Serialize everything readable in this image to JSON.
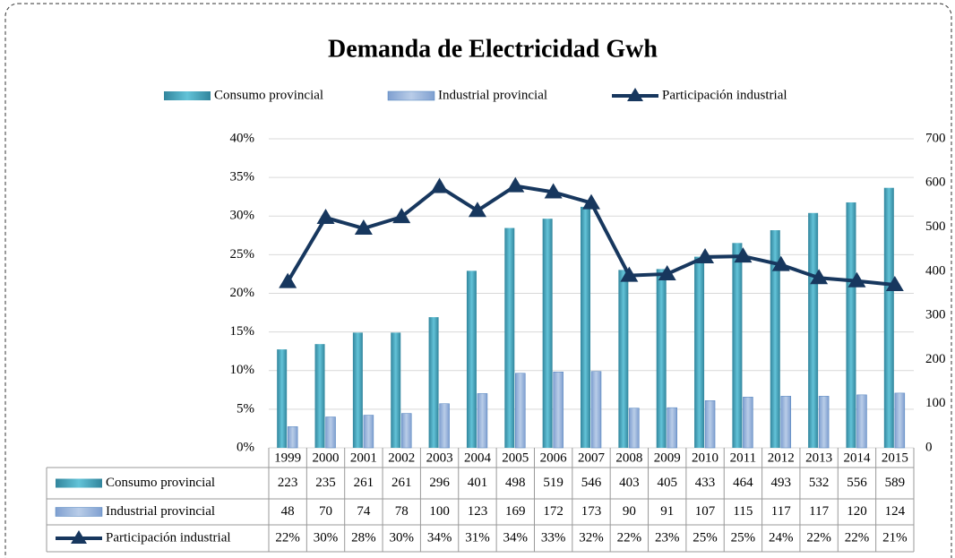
{
  "chart_data": {
    "type": "bar_line",
    "title": "Demanda de Electricidad Gwh",
    "categories": [
      "1999",
      "2000",
      "2001",
      "2002",
      "2003",
      "2004",
      "2005",
      "2006",
      "2007",
      "2008",
      "2009",
      "2010",
      "2011",
      "2012",
      "2013",
      "2014",
      "2015"
    ],
    "series": [
      {
        "name": "Consumo provincial",
        "type": "bar",
        "axis": "y2",
        "color": "#4bacc6",
        "values": [
          223,
          235,
          261,
          261,
          296,
          401,
          498,
          519,
          546,
          403,
          405,
          433,
          464,
          493,
          532,
          556,
          589
        ]
      },
      {
        "name": "Industrial provincial",
        "type": "bar",
        "axis": "y2",
        "color": "#95b3d7",
        "values": [
          48,
          70,
          74,
          78,
          100,
          123,
          169,
          172,
          173,
          90,
          91,
          107,
          115,
          117,
          117,
          120,
          124
        ]
      },
      {
        "name": "Participación industrial",
        "type": "line",
        "axis": "y",
        "color": "#17375e",
        "values": [
          21.5,
          29.8,
          28.4,
          29.9,
          33.8,
          30.7,
          33.9,
          33.1,
          31.7,
          22.3,
          22.5,
          24.7,
          24.8,
          23.7,
          22.0,
          21.6,
          21.1
        ],
        "value_labels": [
          "22%",
          "30%",
          "28%",
          "30%",
          "34%",
          "31%",
          "34%",
          "33%",
          "32%",
          "22%",
          "23%",
          "25%",
          "25%",
          "24%",
          "22%",
          "22%",
          "21%"
        ]
      }
    ],
    "ylim": [
      0,
      40
    ],
    "yticks": [
      {
        "value": 0,
        "label": "0%"
      },
      {
        "value": 5,
        "label": "5%"
      },
      {
        "value": 10,
        "label": "10%"
      },
      {
        "value": 15,
        "label": "15%"
      },
      {
        "value": 20,
        "label": "20%"
      },
      {
        "value": 25,
        "label": "25%"
      },
      {
        "value": 30,
        "label": "30%"
      },
      {
        "value": 35,
        "label": "35%"
      },
      {
        "value": 40,
        "label": "40%"
      }
    ],
    "y2lim": [
      0,
      700
    ],
    "y2ticks": [
      0,
      100,
      200,
      300,
      400,
      500,
      600,
      700
    ],
    "grid": true,
    "legend": "top"
  }
}
